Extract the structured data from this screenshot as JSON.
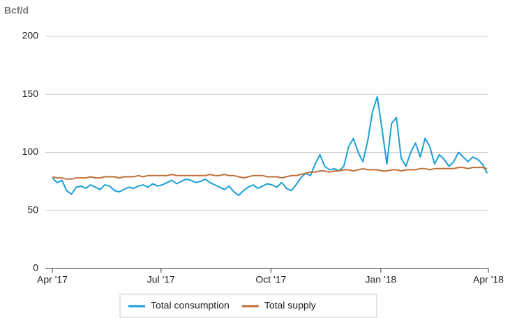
{
  "chart_data": {
    "type": "line",
    "y_label": "Bcf/d",
    "x": [
      0,
      4,
      8,
      12,
      16,
      20,
      24,
      28,
      32,
      36,
      40,
      44,
      48,
      52,
      56,
      60,
      64,
      68,
      72,
      76,
      80,
      84,
      88,
      92,
      96,
      100,
      104,
      108,
      112,
      116,
      120,
      124,
      128,
      132,
      136,
      140,
      144,
      148,
      152,
      156,
      160,
      164,
      168,
      172,
      176,
      180,
      184,
      188,
      192,
      196,
      200,
      204,
      208,
      212,
      216,
      220,
      224,
      228,
      232,
      236,
      240,
      244,
      248,
      252,
      256,
      260,
      264,
      268,
      272,
      276,
      280,
      284,
      288,
      292,
      296,
      300,
      304,
      308,
      312,
      316,
      320,
      324,
      328,
      332,
      336,
      340,
      344,
      348,
      352,
      356,
      360,
      364
    ],
    "series": [
      {
        "name": "Total consumption",
        "color": "#1a9fd6",
        "values": [
          78,
          74,
          76,
          67,
          64,
          70,
          71,
          69,
          72,
          70,
          68,
          72,
          71,
          67,
          66,
          68,
          70,
          69,
          71,
          72,
          70,
          73,
          71,
          72,
          74,
          76,
          73,
          75,
          77,
          76,
          74,
          75,
          77,
          74,
          72,
          70,
          68,
          71,
          66,
          63,
          67,
          70,
          72,
          69,
          71,
          73,
          72,
          70,
          74,
          69,
          67,
          72,
          78,
          82,
          80,
          90,
          98,
          88,
          85,
          86,
          84,
          88,
          105,
          112,
          100,
          92,
          110,
          135,
          148,
          120,
          90,
          125,
          130,
          95,
          88,
          100,
          108,
          96,
          112,
          105,
          90,
          98,
          94,
          88,
          92,
          100,
          96,
          92,
          96,
          94,
          90,
          82
        ]
      },
      {
        "name": "Total supply",
        "color": "#c0703a",
        "values": [
          79,
          78,
          78,
          77,
          77,
          78,
          78,
          78,
          79,
          78,
          78,
          79,
          79,
          79,
          78,
          79,
          79,
          79,
          80,
          79,
          80,
          80,
          80,
          80,
          80,
          81,
          80,
          80,
          80,
          80,
          80,
          80,
          80,
          81,
          80,
          80,
          81,
          80,
          80,
          79,
          78,
          79,
          80,
          80,
          80,
          79,
          79,
          79,
          78,
          79,
          80,
          80,
          81,
          82,
          83,
          83,
          84,
          84,
          83,
          84,
          84,
          85,
          85,
          84,
          85,
          86,
          85,
          85,
          85,
          84,
          84,
          85,
          85,
          84,
          85,
          85,
          85,
          86,
          86,
          85,
          86,
          86,
          86,
          86,
          86,
          87,
          87,
          86,
          87,
          87,
          87,
          86
        ]
      }
    ],
    "xlim": [
      0,
      365
    ],
    "xticks": [
      {
        "value": 0,
        "label": "Apr '17"
      },
      {
        "value": 91,
        "label": "Jul '17"
      },
      {
        "value": 183,
        "label": "Oct '17"
      },
      {
        "value": 275,
        "label": "Jan '18"
      },
      {
        "value": 365,
        "label": "Apr '18"
      }
    ],
    "ylim": [
      0,
      200
    ],
    "yticks": [
      0,
      50,
      100,
      150,
      200
    ],
    "grid": true,
    "legend": "bottom"
  }
}
